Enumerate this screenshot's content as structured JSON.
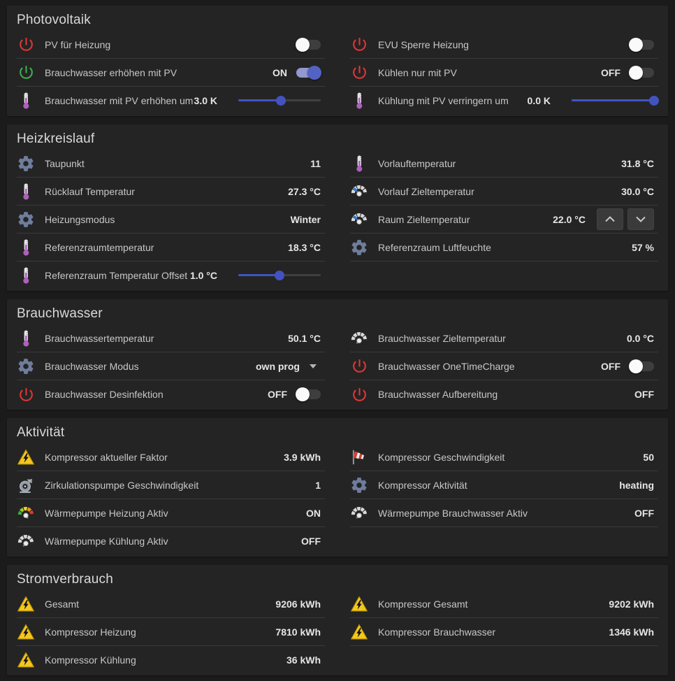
{
  "theme": {
    "page_bg": "#1b1b1b",
    "card_bg": "#242424",
    "divider": "#3a3a3a",
    "accent_blue": "#4253c0",
    "toggle_on_track": "#9299ce",
    "toggle_on_knob": "#5263c3",
    "power_red": "#e03636",
    "power_green": "#3fae4f",
    "gear_gray_blue": "#6f7d9c",
    "thermometer_purple": "#b05fc0",
    "warning_yellow": "#f5c61e"
  },
  "sections": [
    {
      "title": "Photovoltaik",
      "columns": [
        [
          {
            "icon": "power-red-icon",
            "label": "PV für Heizung",
            "control": {
              "type": "toggle",
              "state": "off"
            }
          },
          {
            "icon": "power-green-icon",
            "label": "Brauchwasser erhöhen mit PV",
            "control": {
              "type": "toggle",
              "state": "on",
              "state_label": "ON"
            }
          },
          {
            "icon": "thermometer-icon",
            "label": "Brauchwasser mit PV erhöhen um",
            "control": {
              "type": "slider",
              "value": "3.0 K",
              "percent": 52
            }
          }
        ],
        [
          {
            "icon": "power-red-icon",
            "label": "EVU Sperre Heizung",
            "control": {
              "type": "toggle",
              "state": "off"
            }
          },
          {
            "icon": "power-red-icon",
            "label": "Kühlen nur mit PV",
            "control": {
              "type": "toggle",
              "state": "off",
              "state_label": "OFF"
            }
          },
          {
            "icon": "thermometer-icon",
            "label": "Kühlung mit PV verringern um",
            "control": {
              "type": "slider",
              "value": "0.0 K",
              "percent": 100
            }
          }
        ]
      ]
    },
    {
      "title": "Heizkreislauf",
      "columns": [
        [
          {
            "icon": "gear-icon",
            "label": "Taupunkt",
            "control": {
              "type": "value",
              "value": "11"
            }
          },
          {
            "icon": "thermometer-icon",
            "label": "Rücklauf Temperatur",
            "control": {
              "type": "value",
              "value": "27.3 °C"
            }
          },
          {
            "icon": "gear-icon",
            "label": "Heizungsmodus",
            "control": {
              "type": "value",
              "value": "Winter"
            }
          },
          {
            "icon": "thermometer-icon",
            "label": "Referenzraumtemperatur",
            "control": {
              "type": "value",
              "value": "18.3 °C"
            }
          },
          {
            "icon": "thermometer-icon",
            "label": "Referenzraum Temperatur Offset",
            "control": {
              "type": "slider",
              "value": "1.0 °C",
              "percent": 50
            }
          }
        ],
        [
          {
            "icon": "thermometer-icon",
            "label": "Vorlauftemperatur",
            "control": {
              "type": "value",
              "value": "31.8 °C"
            }
          },
          {
            "icon": "gauge-blue-icon",
            "label": "Vorlauf Zieltemperatur",
            "control": {
              "type": "value",
              "value": "30.0 °C"
            }
          },
          {
            "icon": "gauge-blue-icon",
            "label": "Raum Zieltemperatur",
            "control": {
              "type": "stepper",
              "value": "22.0 °C"
            }
          },
          {
            "icon": "gear-icon",
            "label": "Referenzraum Luftfeuchte",
            "control": {
              "type": "value",
              "value": "57 %"
            }
          }
        ]
      ]
    },
    {
      "title": "Brauchwasser",
      "columns": [
        [
          {
            "icon": "thermometer-icon",
            "label": "Brauchwassertemperatur",
            "control": {
              "type": "value",
              "value": "50.1 °C"
            }
          },
          {
            "icon": "gear-icon",
            "label": "Brauchwasser Modus",
            "control": {
              "type": "select",
              "value": "own prog"
            }
          },
          {
            "icon": "power-red-icon",
            "label": "Brauchwasser Desinfektion",
            "control": {
              "type": "toggle",
              "state": "off",
              "state_label": "OFF"
            }
          }
        ],
        [
          {
            "icon": "gauge-gray-icon",
            "label": "Brauchwasser Zieltemperatur",
            "control": {
              "type": "value",
              "value": "0.0 °C"
            }
          },
          {
            "icon": "power-red-icon",
            "label": "Brauchwasser OneTimeCharge",
            "control": {
              "type": "toggle",
              "state": "off",
              "state_label": "OFF"
            }
          },
          {
            "icon": "power-red-icon",
            "label": "Brauchwasser Aufbereitung",
            "control": {
              "type": "value",
              "value": "OFF"
            }
          }
        ]
      ]
    },
    {
      "title": "Aktivität",
      "columns": [
        [
          {
            "icon": "warning-icon",
            "label": "Kompressor aktueller Faktor",
            "control": {
              "type": "value",
              "value": "3.9 kWh"
            }
          },
          {
            "icon": "pump-icon",
            "label": "Zirkulationspumpe Geschwindigkeit",
            "control": {
              "type": "value",
              "value": "1"
            }
          },
          {
            "icon": "gauge-rainbow-icon",
            "label": "Wärmepumpe Heizung Aktiv",
            "control": {
              "type": "value",
              "value": "ON"
            }
          },
          {
            "icon": "gauge-gray-icon",
            "label": "Wärmepumpe Kühlung Aktiv",
            "control": {
              "type": "value",
              "value": "OFF"
            }
          }
        ],
        [
          {
            "icon": "windsock-icon",
            "label": "Kompressor Geschwindigkeit",
            "control": {
              "type": "value",
              "value": "50"
            }
          },
          {
            "icon": "gear-icon",
            "label": "Kompressor Aktivität",
            "control": {
              "type": "value",
              "value": "heating"
            }
          },
          {
            "icon": "gauge-gray-icon",
            "label": "Wärmepumpe Brauchwasser Aktiv",
            "control": {
              "type": "value",
              "value": "OFF"
            }
          }
        ]
      ]
    },
    {
      "title": "Stromverbrauch",
      "columns": [
        [
          {
            "icon": "warning-icon",
            "label": "Gesamt",
            "control": {
              "type": "value",
              "value": "9206 kWh"
            }
          },
          {
            "icon": "warning-icon",
            "label": "Kompressor Heizung",
            "control": {
              "type": "value",
              "value": "7810 kWh"
            }
          },
          {
            "icon": "warning-icon",
            "label": "Kompressor Kühlung",
            "control": {
              "type": "value",
              "value": "36 kWh"
            }
          }
        ],
        [
          {
            "icon": "warning-icon",
            "label": "Kompressor Gesamt",
            "control": {
              "type": "value",
              "value": "9202 kWh"
            }
          },
          {
            "icon": "warning-icon",
            "label": "Kompressor Brauchwasser",
            "control": {
              "type": "value",
              "value": "1346 kWh"
            }
          }
        ]
      ]
    }
  ]
}
